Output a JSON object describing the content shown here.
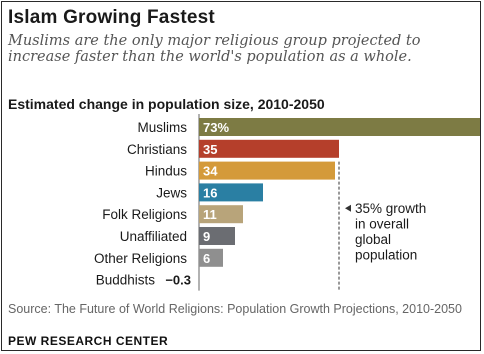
{
  "title": "Islam Growing Fastest",
  "subtitle": "Muslims are the only major religious group projected to increase faster than the world's population as a whole.",
  "source": "Source: The Future of World Religions: Population Growth Projections, 2010-2050",
  "credit": "PEW RESEARCH CENTER",
  "colors": {
    "muslims": "#7d7b44",
    "christians": "#b53f2b",
    "hindus": "#d49a3a",
    "jews": "#2a7fa3",
    "folk": "#b8a47a",
    "unaffiliated": "#6b6d72",
    "other": "#8f8f8f",
    "axis": "#666666",
    "annotation": "#333333"
  },
  "chart_data": {
    "type": "bar",
    "orientation": "horizontal",
    "title": "Estimated change in population size, 2010-2050",
    "categories": [
      "Muslims",
      "Christians",
      "Hindus",
      "Jews",
      "Folk Religions",
      "Unaffiliated",
      "Other Religions",
      "Buddhists"
    ],
    "values": [
      73,
      35,
      34,
      16,
      11,
      9,
      6,
      -0.3
    ],
    "value_labels": [
      "73%",
      "35",
      "34",
      "16",
      "11",
      "9",
      "6",
      "−0.3"
    ],
    "xlim": [
      0,
      73
    ],
    "annotation": {
      "value": 35,
      "lines": [
        "35% growth",
        "in overall",
        "global",
        "population"
      ]
    },
    "grid": false,
    "legend": "none"
  }
}
